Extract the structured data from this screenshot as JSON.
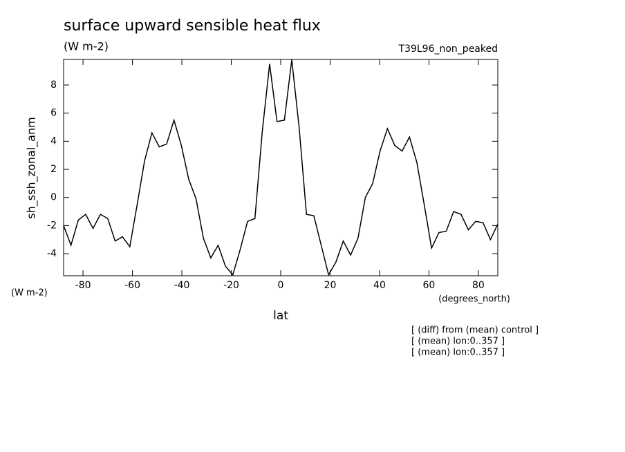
{
  "chart_data": {
    "type": "line",
    "title": "surface upward sensible heat flux",
    "subtitle": "(W m-2)",
    "dataset": "T39L96_non_peaked",
    "ylabel": "sh_ssh_zonal_anm",
    "yunits": "(W m-2)",
    "xunits": "(degrees_north)",
    "xlabel": "lat",
    "notes": [
      "[ (diff) from (mean) control ]",
      "[ (mean) lon:0..357 ]",
      "[ (mean) lon:0..357 ]"
    ],
    "x": [
      -87.86,
      -84.88,
      -81.9,
      -78.93,
      -75.95,
      -72.97,
      -69.99,
      -67.01,
      -64.04,
      -61.06,
      -58.08,
      -55.1,
      -52.12,
      -49.15,
      -46.17,
      -43.19,
      -40.21,
      -37.23,
      -34.26,
      -31.28,
      -28.3,
      -25.32,
      -22.34,
      -19.37,
      -16.39,
      -13.41,
      -10.43,
      -7.45,
      -4.48,
      -1.5,
      1.5,
      4.48,
      7.45,
      10.43,
      13.41,
      16.39,
      19.37,
      22.34,
      25.32,
      28.3,
      31.28,
      34.26,
      37.23,
      40.21,
      43.19,
      46.17,
      49.15,
      52.12,
      55.1,
      58.08,
      61.06,
      64.04,
      67.01,
      69.99,
      72.97,
      75.95,
      78.93,
      81.9,
      84.88,
      87.86
    ],
    "series": [
      {
        "name": "sh_ssh_zonal_anm",
        "color": "#000000",
        "values": [
          -2.0,
          -3.4,
          -1.6,
          -1.2,
          -2.2,
          -1.2,
          -1.5,
          -3.1,
          -2.8,
          -3.5,
          -0.5,
          2.6,
          4.6,
          3.6,
          3.8,
          5.5,
          3.7,
          1.3,
          -0.1,
          -2.9,
          -4.3,
          -3.4,
          -4.9,
          -5.5,
          -3.7,
          -1.7,
          -1.5,
          4.7,
          9.5,
          5.4,
          5.5,
          9.8,
          5.0,
          -1.2,
          -1.3,
          -3.4,
          -5.5,
          -4.6,
          -3.1,
          -4.1,
          -2.9,
          0.0,
          1.0,
          3.3,
          4.9,
          3.7,
          3.3,
          4.3,
          2.5,
          -0.5,
          -3.6,
          -2.5,
          -2.4,
          -1.0,
          -1.2,
          -2.3,
          -1.7,
          -1.8,
          -3.0,
          -1.9
        ]
      }
    ],
    "xlim": [
      -87.86,
      87.86
    ],
    "ylim": [
      -5.57,
      9.82
    ],
    "xticks": [
      -80,
      -60,
      -40,
      -20,
      0,
      20,
      40,
      60,
      80
    ],
    "yticks": [
      -4,
      -2,
      0,
      2,
      4,
      6,
      8
    ]
  }
}
